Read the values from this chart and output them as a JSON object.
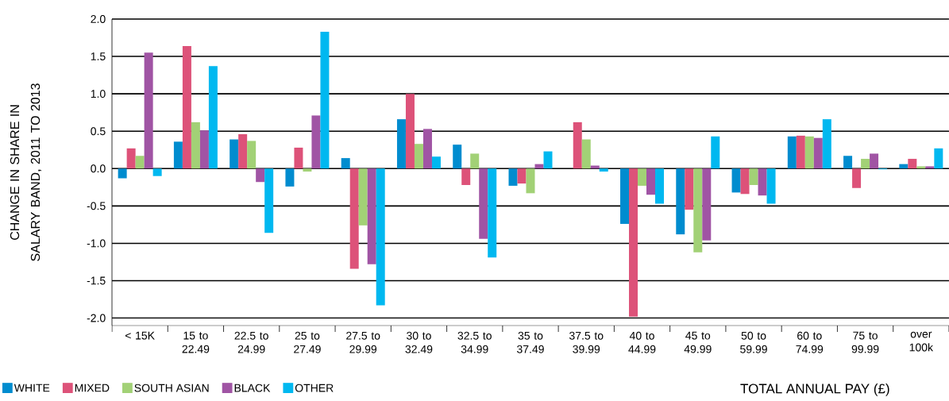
{
  "chart_data": {
    "type": "bar",
    "xlabel": "TOTAL ANNUAL PAY (£)",
    "ylabel": "CHANGE IN SHARE IN SALARY BAND, 2011 TO 2013",
    "categories": [
      "< 15K",
      "15 to 22.49",
      "22.5 to 24.99",
      "25 to 27.49",
      "27.5 to 29.99",
      "30 to 32.49",
      "32.5 to 34.99",
      "35 to 37.49",
      "37.5 to 39.99",
      "40 to 44.99",
      "45 to 49.99",
      "50 to 59.99",
      "60 to 74.99",
      "75 to 99.99",
      "over 100k"
    ],
    "series": [
      {
        "name": "WHITE",
        "color": "#008ccf",
        "values": [
          -0.13,
          0.36,
          0.39,
          -0.24,
          0.14,
          0.66,
          0.32,
          -0.23,
          0.0,
          -0.74,
          -0.88,
          -0.32,
          0.43,
          0.17,
          0.06
        ]
      },
      {
        "name": "MIXED",
        "color": "#dd5279",
        "values": [
          0.27,
          1.64,
          0.46,
          0.28,
          -1.34,
          1.0,
          -0.22,
          -0.2,
          0.62,
          -1.98,
          -0.55,
          -0.34,
          0.44,
          -0.26,
          0.13
        ]
      },
      {
        "name": "SOUTH ASIAN",
        "color": "#a2d176",
        "values": [
          0.17,
          0.62,
          0.37,
          -0.04,
          -0.76,
          0.33,
          0.2,
          -0.33,
          0.39,
          -0.23,
          -1.12,
          -0.22,
          0.43,
          0.13,
          0.03
        ]
      },
      {
        "name": "BLACK",
        "color": "#a054a4",
        "values": [
          1.55,
          0.51,
          -0.18,
          0.71,
          -1.28,
          0.53,
          -0.94,
          0.06,
          0.04,
          -0.35,
          -0.96,
          -0.36,
          0.41,
          0.2,
          0.03
        ]
      },
      {
        "name": "OTHER",
        "color": "#00b8f0",
        "values": [
          -0.1,
          1.37,
          -0.86,
          1.83,
          -1.83,
          0.16,
          -1.19,
          0.23,
          -0.04,
          -0.47,
          0.43,
          -0.47,
          0.66,
          -0.01,
          0.27
        ]
      }
    ],
    "ylim": [
      -2.1,
      2.0
    ],
    "yticks": [
      {
        "value": -2.0,
        "label": "-2.0"
      },
      {
        "value": -1.5,
        "label": "-1.5"
      },
      {
        "value": -1.0,
        "label": "-1.0"
      },
      {
        "value": -0.5,
        "label": "-0.5"
      },
      {
        "value": 0.0,
        "label": "0.0"
      },
      {
        "value": 0.5,
        "label": "0.5"
      },
      {
        "value": 1.0,
        "label": "1.0"
      },
      {
        "value": 1.5,
        "label": "1.5"
      },
      {
        "value": 2.0,
        "label": "2.0"
      }
    ],
    "grid": "y",
    "legend": "bottom left"
  }
}
